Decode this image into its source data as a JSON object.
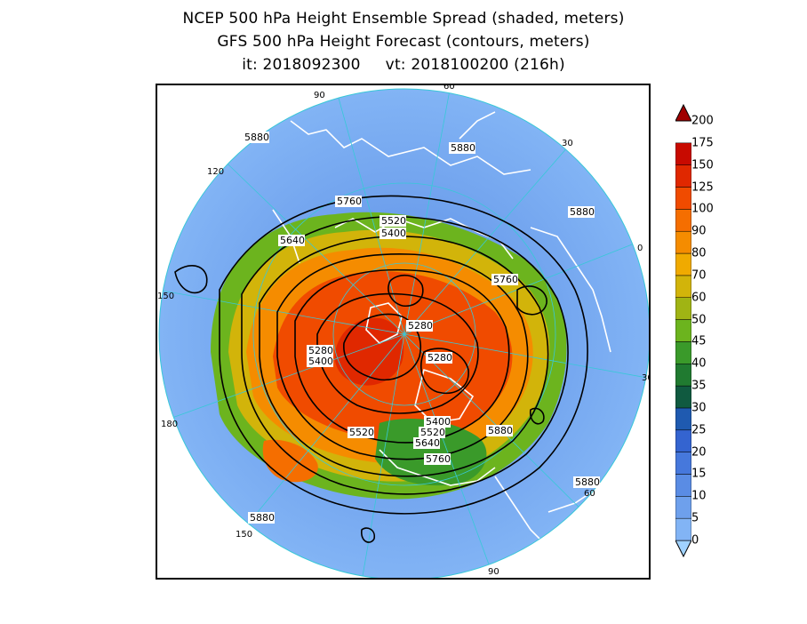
{
  "titles": {
    "line1": "NCEP 500 hPa Height Ensemble Spread (shaded, meters)",
    "line2": "GFS 500 hPa Height Forecast (contours, meters)",
    "line3": "it: 2018092300     vt: 2018100200 (216h)"
  },
  "colors": {
    "ocean_low": "#6ea6f0",
    "frame": "#000000",
    "coast": "#ffffff",
    "graticule": "#38c8d8"
  },
  "colorbar": {
    "levels": [
      "0",
      "5",
      "10",
      "15",
      "20",
      "25",
      "30",
      "35",
      "40",
      "45",
      "50",
      "60",
      "70",
      "80",
      "90",
      "100",
      "125",
      "150",
      "175",
      "200"
    ],
    "colors": [
      "#a0d2ff",
      "#82b4f5",
      "#6ea0ec",
      "#5a8ce4",
      "#4678dc",
      "#3464d0",
      "#1f5ab0",
      "#105a40",
      "#207a30",
      "#3a9a2a",
      "#6cb41e",
      "#a0b414",
      "#d2b40a",
      "#f0aa00",
      "#f58c00",
      "#f56e00",
      "#f04b00",
      "#e02800",
      "#c80a00",
      "#a00000"
    ]
  },
  "graticule_labels": [
    "60",
    "30",
    "0",
    "30",
    "60",
    "90",
    "120",
    "150",
    "180",
    "150",
    "120",
    "90"
  ],
  "contour_labels": [
    "5880",
    "5880",
    "5880",
    "5760",
    "5640",
    "5520",
    "5400",
    "5280",
    "5280",
    "5400",
    "5280",
    "5760",
    "5520",
    "5400",
    "5520",
    "5640",
    "5760",
    "5880",
    "5880",
    "5880"
  ]
}
